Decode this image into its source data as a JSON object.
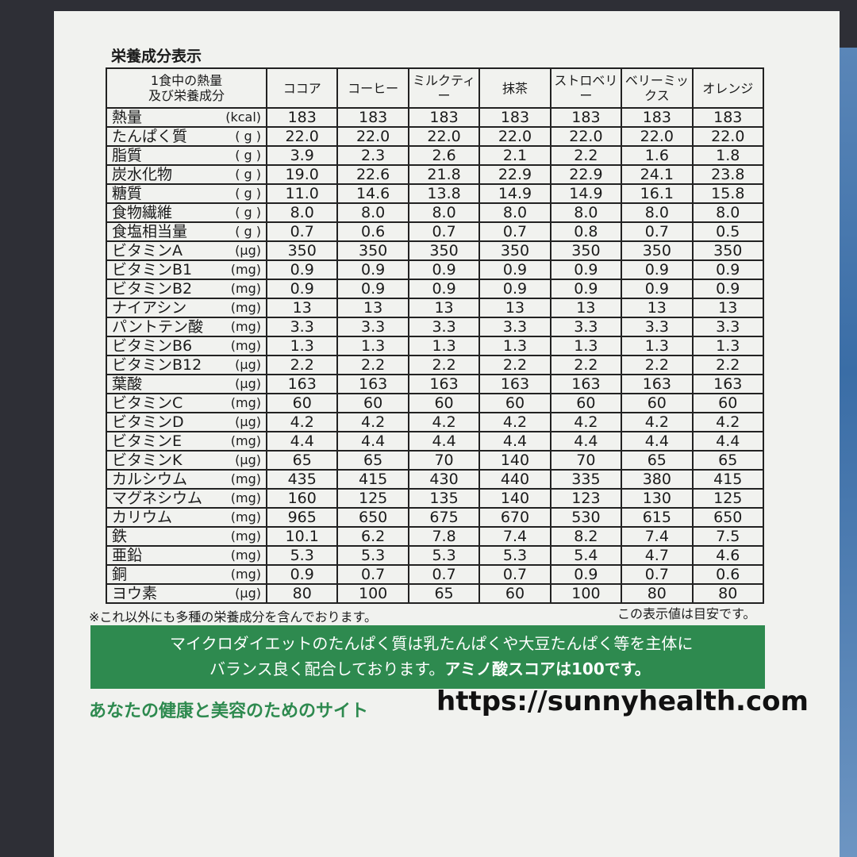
{
  "title": "栄養成分表示",
  "table": {
    "header_label": [
      "1食中の熱量",
      "及び栄養成分"
    ],
    "columns": [
      "ココア",
      "コーヒー",
      "ミルクティー",
      "抹茶",
      "ストロベリー",
      "ベリーミックス",
      "オレンジ"
    ],
    "rows": [
      {
        "name": "熱量",
        "unit": "(kcal)",
        "values": [
          "183",
          "183",
          "183",
          "183",
          "183",
          "183",
          "183"
        ]
      },
      {
        "name": "たんぱく質",
        "unit": "( g )",
        "values": [
          "22.0",
          "22.0",
          "22.0",
          "22.0",
          "22.0",
          "22.0",
          "22.0"
        ]
      },
      {
        "name": "脂質",
        "unit": "( g )",
        "values": [
          "3.9",
          "2.3",
          "2.6",
          "2.1",
          "2.2",
          "1.6",
          "1.8"
        ]
      },
      {
        "name": "炭水化物",
        "unit": "( g )",
        "values": [
          "19.0",
          "22.6",
          "21.8",
          "22.9",
          "22.9",
          "24.1",
          "23.8"
        ]
      },
      {
        "name": "糖質",
        "unit": "( g )",
        "values": [
          "11.0",
          "14.6",
          "13.8",
          "14.9",
          "14.9",
          "16.1",
          "15.8"
        ]
      },
      {
        "name": "食物繊維",
        "unit": "( g )",
        "values": [
          "8.0",
          "8.0",
          "8.0",
          "8.0",
          "8.0",
          "8.0",
          "8.0"
        ]
      },
      {
        "name": "食塩相当量",
        "unit": "( g )",
        "values": [
          "0.7",
          "0.6",
          "0.7",
          "0.7",
          "0.8",
          "0.7",
          "0.5"
        ]
      },
      {
        "name": "ビタミンA",
        "unit": "(μg)",
        "values": [
          "350",
          "350",
          "350",
          "350",
          "350",
          "350",
          "350"
        ]
      },
      {
        "name": "ビタミンB1",
        "unit": "(mg)",
        "values": [
          "0.9",
          "0.9",
          "0.9",
          "0.9",
          "0.9",
          "0.9",
          "0.9"
        ]
      },
      {
        "name": "ビタミンB2",
        "unit": "(mg)",
        "values": [
          "0.9",
          "0.9",
          "0.9",
          "0.9",
          "0.9",
          "0.9",
          "0.9"
        ]
      },
      {
        "name": "ナイアシン",
        "unit": "(mg)",
        "values": [
          "13",
          "13",
          "13",
          "13",
          "13",
          "13",
          "13"
        ]
      },
      {
        "name": "パントテン酸",
        "unit": "(mg)",
        "values": [
          "3.3",
          "3.3",
          "3.3",
          "3.3",
          "3.3",
          "3.3",
          "3.3"
        ]
      },
      {
        "name": "ビタミンB6",
        "unit": "(mg)",
        "values": [
          "1.3",
          "1.3",
          "1.3",
          "1.3",
          "1.3",
          "1.3",
          "1.3"
        ]
      },
      {
        "name": "ビタミンB12",
        "unit": "(μg)",
        "values": [
          "2.2",
          "2.2",
          "2.2",
          "2.2",
          "2.2",
          "2.2",
          "2.2"
        ]
      },
      {
        "name": "葉酸",
        "unit": "(μg)",
        "values": [
          "163",
          "163",
          "163",
          "163",
          "163",
          "163",
          "163"
        ]
      },
      {
        "name": "ビタミンC",
        "unit": "(mg)",
        "values": [
          "60",
          "60",
          "60",
          "60",
          "60",
          "60",
          "60"
        ]
      },
      {
        "name": "ビタミンD",
        "unit": "(μg)",
        "values": [
          "4.2",
          "4.2",
          "4.2",
          "4.2",
          "4.2",
          "4.2",
          "4.2"
        ]
      },
      {
        "name": "ビタミンE",
        "unit": "(mg)",
        "values": [
          "4.4",
          "4.4",
          "4.4",
          "4.4",
          "4.4",
          "4.4",
          "4.4"
        ]
      },
      {
        "name": "ビタミンK",
        "unit": "(μg)",
        "values": [
          "65",
          "65",
          "70",
          "140",
          "70",
          "65",
          "65"
        ]
      },
      {
        "name": "カルシウム",
        "unit": "(mg)",
        "values": [
          "435",
          "415",
          "430",
          "440",
          "335",
          "380",
          "415"
        ]
      },
      {
        "name": "マグネシウム",
        "unit": "(mg)",
        "values": [
          "160",
          "125",
          "135",
          "140",
          "123",
          "130",
          "125"
        ]
      },
      {
        "name": "カリウム",
        "unit": "(mg)",
        "values": [
          "965",
          "650",
          "675",
          "670",
          "530",
          "615",
          "650"
        ]
      },
      {
        "name": "鉄",
        "unit": "(mg)",
        "values": [
          "10.1",
          "6.2",
          "7.8",
          "7.4",
          "8.2",
          "7.4",
          "7.5"
        ]
      },
      {
        "name": "亜鉛",
        "unit": "(mg)",
        "values": [
          "5.3",
          "5.3",
          "5.3",
          "5.3",
          "5.4",
          "4.7",
          "4.6"
        ]
      },
      {
        "name": "銅",
        "unit": "(mg)",
        "values": [
          "0.9",
          "0.7",
          "0.7",
          "0.7",
          "0.9",
          "0.7",
          "0.6"
        ]
      },
      {
        "name": "ヨウ素",
        "unit": "(μg)",
        "values": [
          "80",
          "100",
          "65",
          "60",
          "100",
          "80",
          "80"
        ]
      }
    ]
  },
  "footnotes": {
    "left": "※これ以外にも多種の栄養成分を含んでおります。",
    "right": "この表示値は目安です。"
  },
  "banner": {
    "line1": "マイクロダイエットのたんぱく質は乳たんぱくや大豆たんぱく等を主体に",
    "line2": "バランス良く配合しております。",
    "emphasis": "アミノ酸スコアは100です。"
  },
  "footer": {
    "tagline": "あなたの健康と美容のためのサイト",
    "url": "https://sunnyhealth.com"
  }
}
